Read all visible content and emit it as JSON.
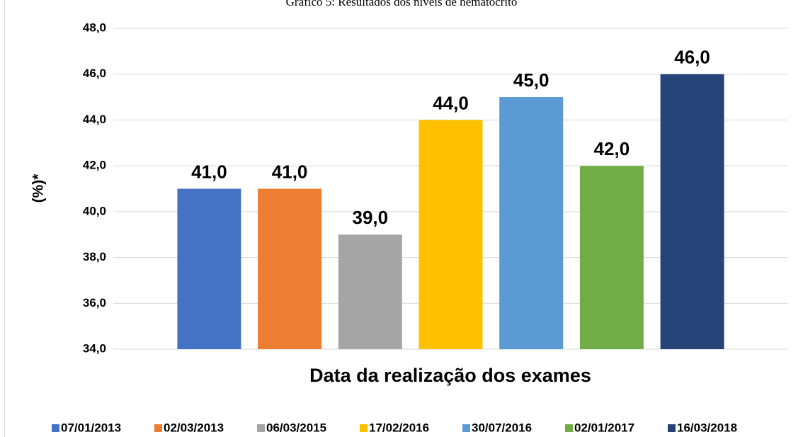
{
  "chart_data": {
    "type": "bar",
    "title": "Gráfico 5: Resultados dos níveis de hematócrito",
    "y_label": "(%)*",
    "x_label": "Data da realização dos exames",
    "categories": [
      null
    ],
    "series": [
      {
        "name": "07/01/2013",
        "color": "#4472c4",
        "values": [
          41
        ],
        "value_labels": [
          "41,0"
        ]
      },
      {
        "name": "02/03/2013",
        "color": "#ed7d31",
        "values": [
          41
        ],
        "value_labels": [
          "41,0"
        ]
      },
      {
        "name": "06/03/2015",
        "color": "#a5a5a5",
        "values": [
          39
        ],
        "value_labels": [
          "39,0"
        ]
      },
      {
        "name": "17/02/2016",
        "color": "#ffc000",
        "values": [
          44
        ],
        "value_labels": [
          "44,0"
        ]
      },
      {
        "name": "30/07/2016",
        "color": "#5b9bd5",
        "values": [
          45
        ],
        "value_labels": [
          "45,0"
        ]
      },
      {
        "name": "02/01/2017",
        "color": "#70ad47",
        "values": [
          42
        ],
        "value_labels": [
          "42,0"
        ]
      },
      {
        "name": "16/03/2018",
        "color": "#264478",
        "values": [
          46
        ],
        "value_labels": [
          "46,0"
        ]
      }
    ],
    "ylim": [
      34,
      48
    ],
    "yticks": [
      {
        "value": 34,
        "label": "34,0"
      },
      {
        "value": 36,
        "label": "36,0"
      },
      {
        "value": 38,
        "label": "38,0"
      },
      {
        "value": 40,
        "label": "40,0"
      },
      {
        "value": 42,
        "label": "42,0"
      },
      {
        "value": 44,
        "label": "44,0"
      },
      {
        "value": 46,
        "label": "46,0"
      },
      {
        "value": 48,
        "label": "48,0"
      }
    ],
    "grid": true,
    "legend": "bottom"
  }
}
